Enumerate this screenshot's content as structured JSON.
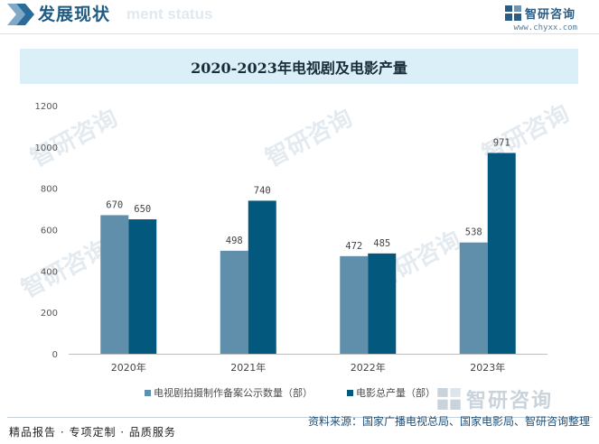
{
  "header": {
    "title": "发展现状",
    "subtitle": "ment status",
    "brand_name": "智研咨询",
    "brand_url": "www.chyxx.com"
  },
  "chart_data": {
    "type": "bar",
    "title": "2020-2023年电视剧及电影产量",
    "categories": [
      "2020年",
      "2021年",
      "2022年",
      "2023年"
    ],
    "series": [
      {
        "name": "电视剧拍摄制作备案公示数量（部）",
        "values": [
          670,
          498,
          472,
          538
        ],
        "color": "#5f8fab"
      },
      {
        "name": "电影总产量（部）",
        "values": [
          650,
          740,
          485,
          971
        ],
        "color": "#03597d"
      }
    ],
    "xlabel": "",
    "ylabel": "",
    "ylim": [
      0,
      1200
    ],
    "yticks": [
      0,
      200,
      400,
      600,
      800,
      1000,
      1200
    ],
    "grid": false,
    "legend": "bottom"
  },
  "watermark": {
    "text": "智研咨询"
  },
  "footer": {
    "left": "精品报告 · 专项定制 · 品质服务",
    "source": "资料来源：国家广播电视总局、国家电影局、智研咨询整理"
  }
}
